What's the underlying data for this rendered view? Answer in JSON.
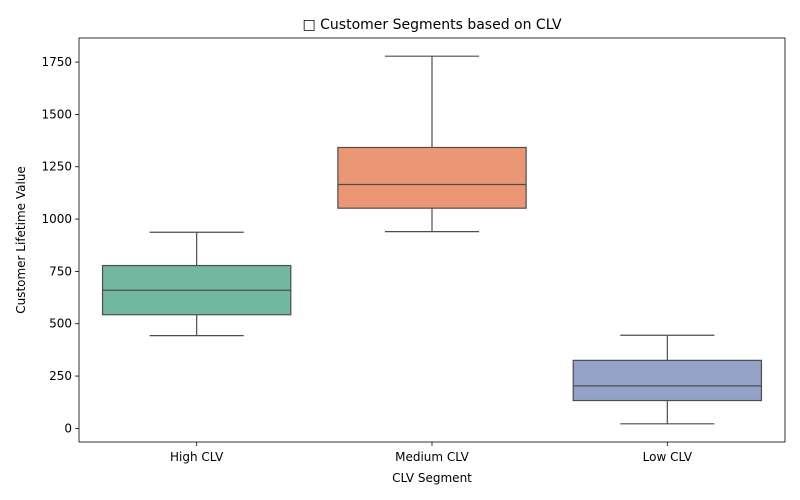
{
  "chart_data": {
    "type": "box",
    "title": "□ Customer Segments based on CLV",
    "xlabel": "CLV Segment",
    "ylabel": "Customer Lifetime Value",
    "ylim": [
      -65,
      1865
    ],
    "yticks": [
      0,
      250,
      500,
      750,
      1000,
      1250,
      1500,
      1750
    ],
    "grid": false,
    "categories": [
      "High CLV",
      "Medium CLV",
      "Low CLV"
    ],
    "boxes": [
      {
        "category": "High CLV",
        "min": 443,
        "q1": 543,
        "median": 660,
        "q3": 778,
        "max": 937,
        "color": "#72b8a1"
      },
      {
        "category": "Medium CLV",
        "min": 940,
        "q1": 1052,
        "median": 1165,
        "q3": 1342,
        "max": 1778,
        "color": "#eb9775"
      },
      {
        "category": "Low CLV",
        "min": 22,
        "q1": 133,
        "median": 203,
        "q3": 325,
        "max": 445,
        "color": "#93a2c6"
      }
    ],
    "line_color": "#4d4d4d"
  }
}
